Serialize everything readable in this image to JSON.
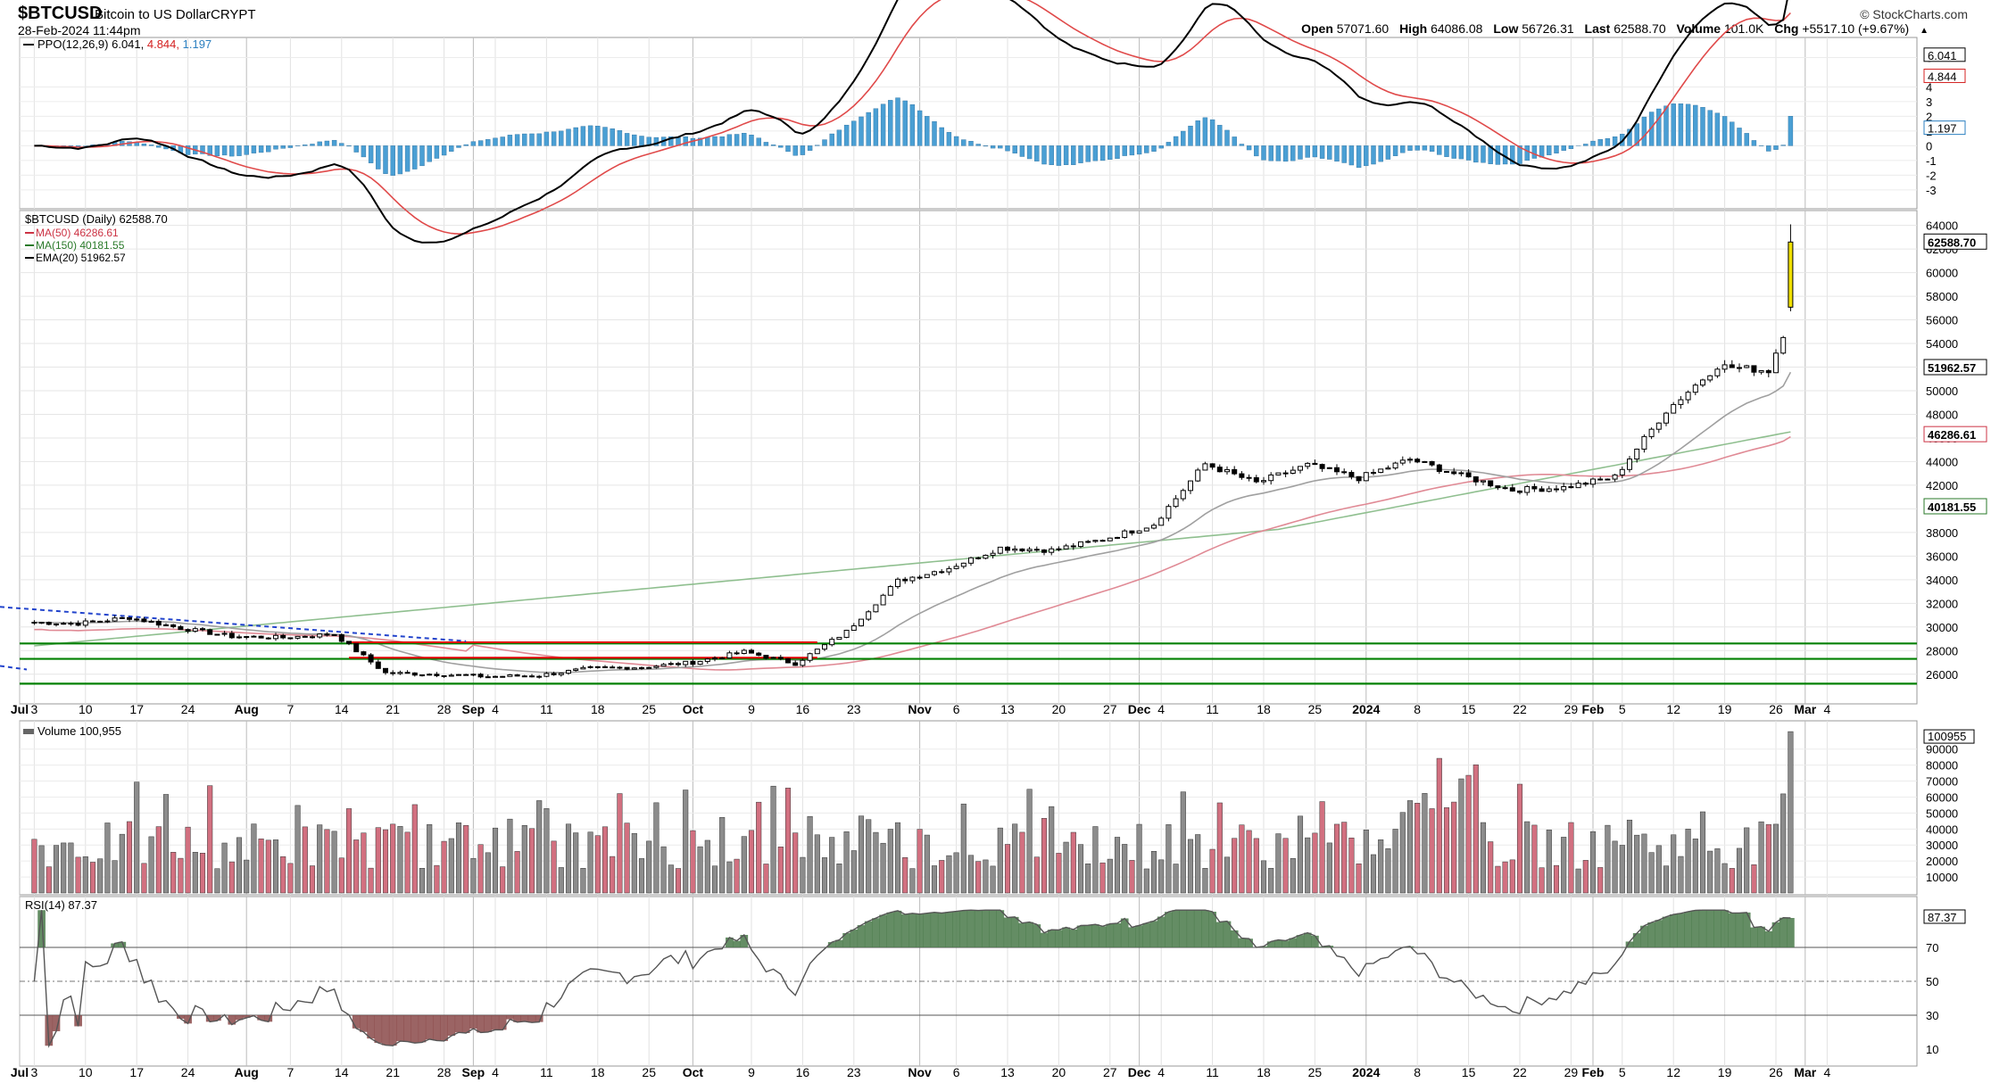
{
  "header": {
    "symbol": "$BTCUSD",
    "name": "Bitcoin to US Dollar",
    "exchange": "CRYPT",
    "date": "28-Feb-2024 11:44pm",
    "brand": "© StockCharts.com",
    "ohlc": [
      {
        "label": "Open",
        "value": "57071.60"
      },
      {
        "label": "High",
        "value": "64086.08"
      },
      {
        "label": "Low",
        "value": "56726.31"
      },
      {
        "label": "Last",
        "value": "62588.70"
      },
      {
        "label": "Volume",
        "value": "101.0K"
      },
      {
        "label": "Chg",
        "value": "+5517.10 (+9.67%)"
      }
    ],
    "chg_icon": "triangle-up-icon"
  },
  "colors": {
    "up": "#000000",
    "down": "#000000",
    "last_bar": "#f0e000",
    "ma50": "#e08a95",
    "ma150": "#8fbf8f",
    "ema20": "#a0a0a0",
    "ppo_line": "#000000",
    "ppo_signal": "#e04a4a",
    "ppo_hist": "#4a9fd4",
    "vol_up": "#8c8c8c",
    "vol_down": "#d27080",
    "support": "#008000",
    "resistance": "#e00000",
    "trend": "#2244cc",
    "rsi": "#555555",
    "rsi_fill": "#4a7a4a",
    "rsi_fill_low": "#8a4a4a"
  },
  "ppo": {
    "legend": "PPO(12,26,9)",
    "ppo_value": "6.041",
    "signal_value": "4.844",
    "hist_value": "1.197",
    "yaxis_ticks": [
      "6",
      "4",
      "3",
      "2",
      "1",
      "0",
      "-1",
      "-2",
      "-3"
    ]
  },
  "price": {
    "legend_title": "$BTCUSD (Daily) 62588.70",
    "legends": [
      {
        "text": "MA(50) 46286.61",
        "color": "#cc3344"
      },
      {
        "text": "MA(150) 40181.55",
        "color": "#2a7a2a"
      },
      {
        "text": "EMA(20) 51962.57",
        "color": "#000000"
      }
    ],
    "yaxis_ticks": [
      "64000",
      "62000",
      "60000",
      "58000",
      "56000",
      "54000",
      "52000",
      "50000",
      "48000",
      "46000",
      "44000",
      "42000",
      "40000",
      "38000",
      "36000",
      "34000",
      "32000",
      "30000",
      "28000",
      "26000"
    ],
    "tags": {
      "last": "62588.70",
      "ema20": "51962.57",
      "ma50": "46286.61",
      "ma150": "40181.55"
    }
  },
  "volume": {
    "legend": "Volume 100,955",
    "yaxis_ticks": [
      "90000",
      "80000",
      "70000",
      "60000",
      "50000",
      "40000",
      "30000",
      "20000",
      "10000"
    ],
    "tag": "100955"
  },
  "rsi": {
    "legend": "RSI(14) 87.37",
    "yaxis_ticks": [
      "70",
      "50",
      "30",
      "10"
    ],
    "tag": "87.37"
  },
  "xaxis": {
    "labels": [
      {
        "text": "Jul",
        "bold": true
      },
      {
        "text": "3",
        "bold": false
      },
      {
        "text": "10",
        "bold": false
      },
      {
        "text": "17",
        "bold": false
      },
      {
        "text": "24",
        "bold": false
      },
      {
        "text": "Aug",
        "bold": true
      },
      {
        "text": "7",
        "bold": false
      },
      {
        "text": "14",
        "bold": false
      },
      {
        "text": "21",
        "bold": false
      },
      {
        "text": "28",
        "bold": false
      },
      {
        "text": "Sep",
        "bold": true
      },
      {
        "text": "4",
        "bold": false
      },
      {
        "text": "11",
        "bold": false
      },
      {
        "text": "18",
        "bold": false
      },
      {
        "text": "25",
        "bold": false
      },
      {
        "text": "Oct",
        "bold": true
      },
      {
        "text": "9",
        "bold": false
      },
      {
        "text": "16",
        "bold": false
      },
      {
        "text": "23",
        "bold": false
      },
      {
        "text": "Nov",
        "bold": true
      },
      {
        "text": "6",
        "bold": false
      },
      {
        "text": "13",
        "bold": false
      },
      {
        "text": "20",
        "bold": false
      },
      {
        "text": "27",
        "bold": false
      },
      {
        "text": "Dec",
        "bold": true
      },
      {
        "text": "4",
        "bold": false
      },
      {
        "text": "11",
        "bold": false
      },
      {
        "text": "18",
        "bold": false
      },
      {
        "text": "25",
        "bold": false
      },
      {
        "text": "2024",
        "bold": true
      },
      {
        "text": "8",
        "bold": false
      },
      {
        "text": "15",
        "bold": false
      },
      {
        "text": "22",
        "bold": false
      },
      {
        "text": "29",
        "bold": false
      },
      {
        "text": "Feb",
        "bold": true
      },
      {
        "text": "5",
        "bold": false
      },
      {
        "text": "12",
        "bold": false
      },
      {
        "text": "19",
        "bold": false
      },
      {
        "text": "26",
        "bold": false
      },
      {
        "text": "Mar",
        "bold": true
      },
      {
        "text": "4",
        "bold": false
      }
    ]
  },
  "chart_data": {
    "type": "candlestick",
    "title": "$BTCUSD (Daily) 62588.70",
    "x_range": [
      "2023-07-01",
      "2024-03-04"
    ],
    "y_range": [
      25000,
      64500
    ],
    "support_levels": [
      28600,
      27300,
      25200
    ],
    "resistance_levels": [
      28700,
      27400
    ],
    "weekly_close": [
      {
        "week": "2023-07-03",
        "close": 30300
      },
      {
        "week": "2023-07-10",
        "close": 30800
      },
      {
        "week": "2023-07-17",
        "close": 29900
      },
      {
        "week": "2023-07-24",
        "close": 29200
      },
      {
        "week": "2023-07-31",
        "close": 29100
      },
      {
        "week": "2023-08-07",
        "close": 29400
      },
      {
        "week": "2023-08-14",
        "close": 26100
      },
      {
        "week": "2023-08-21",
        "close": 26000
      },
      {
        "week": "2023-08-28",
        "close": 25800
      },
      {
        "week": "2023-09-04",
        "close": 25900
      },
      {
        "week": "2023-09-11",
        "close": 26500
      },
      {
        "week": "2023-09-18",
        "close": 26600
      },
      {
        "week": "2023-09-25",
        "close": 27000
      },
      {
        "week": "2023-10-02",
        "close": 27900
      },
      {
        "week": "2023-10-09",
        "close": 26900
      },
      {
        "week": "2023-10-16",
        "close": 29600
      },
      {
        "week": "2023-10-23",
        "close": 33900
      },
      {
        "week": "2023-10-30",
        "close": 35000
      },
      {
        "week": "2023-11-06",
        "close": 36700
      },
      {
        "week": "2023-11-13",
        "close": 36500
      },
      {
        "week": "2023-11-20",
        "close": 37400
      },
      {
        "week": "2023-11-27",
        "close": 38700
      },
      {
        "week": "2023-12-04",
        "close": 43800
      },
      {
        "week": "2023-12-11",
        "close": 42200
      },
      {
        "week": "2023-12-18",
        "close": 43700
      },
      {
        "week": "2023-12-25",
        "close": 42600
      },
      {
        "week": "2024-01-01",
        "close": 44200
      },
      {
        "week": "2024-01-08",
        "close": 42800
      },
      {
        "week": "2024-01-15",
        "close": 41600
      },
      {
        "week": "2024-01-22",
        "close": 41800
      },
      {
        "week": "2024-01-29",
        "close": 42700
      },
      {
        "week": "2024-02-05",
        "close": 48300
      },
      {
        "week": "2024-02-12",
        "close": 52100
      },
      {
        "week": "2024-02-19",
        "close": 51700
      },
      {
        "week": "2024-02-26",
        "close": 62588.7
      }
    ]
  }
}
